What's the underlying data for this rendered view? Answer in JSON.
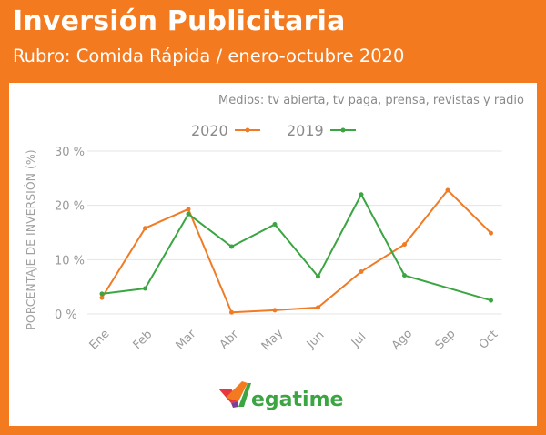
{
  "title": "Inversión Publicitaria",
  "subtitle": "Rubro: Comida Rápida / enero-octubre 2020",
  "note": "Medios: tv abierta, tv paga, prensa, revistas y radio",
  "brand": {
    "text": "egatime",
    "color": "#3aa541",
    "icon": "megatime-logo-icon"
  },
  "colors": {
    "background": "#f47a20",
    "series_2020": "#f07b24",
    "series_2019": "#3aa541"
  },
  "chart_data": {
    "type": "line",
    "categories": [
      "Ene",
      "Feb",
      "Mar",
      "Abr",
      "May",
      "Jun",
      "Jul",
      "Ago",
      "Sep",
      "Oct"
    ],
    "series": [
      {
        "name": "2020",
        "color": "#f07b24",
        "values": [
          3.0,
          15.8,
          19.3,
          0.3,
          0.7,
          1.2,
          7.8,
          12.8,
          22.8,
          14.9
        ]
      },
      {
        "name": "2019",
        "color": "#3aa541",
        "values": [
          3.7,
          4.7,
          18.4,
          12.4,
          16.5,
          6.9,
          22.0,
          7.1,
          null,
          2.5
        ]
      }
    ],
    "ylabel": "PORCENTAJE DE INVERSIÓN (%)",
    "xlabel": "",
    "ylim": [
      0,
      30
    ],
    "yticks": [
      "0 %",
      "10 %",
      "20 %",
      "30 %"
    ],
    "ytick_values": [
      0,
      10,
      20,
      30
    ],
    "grid": true,
    "legend_position": "top"
  }
}
